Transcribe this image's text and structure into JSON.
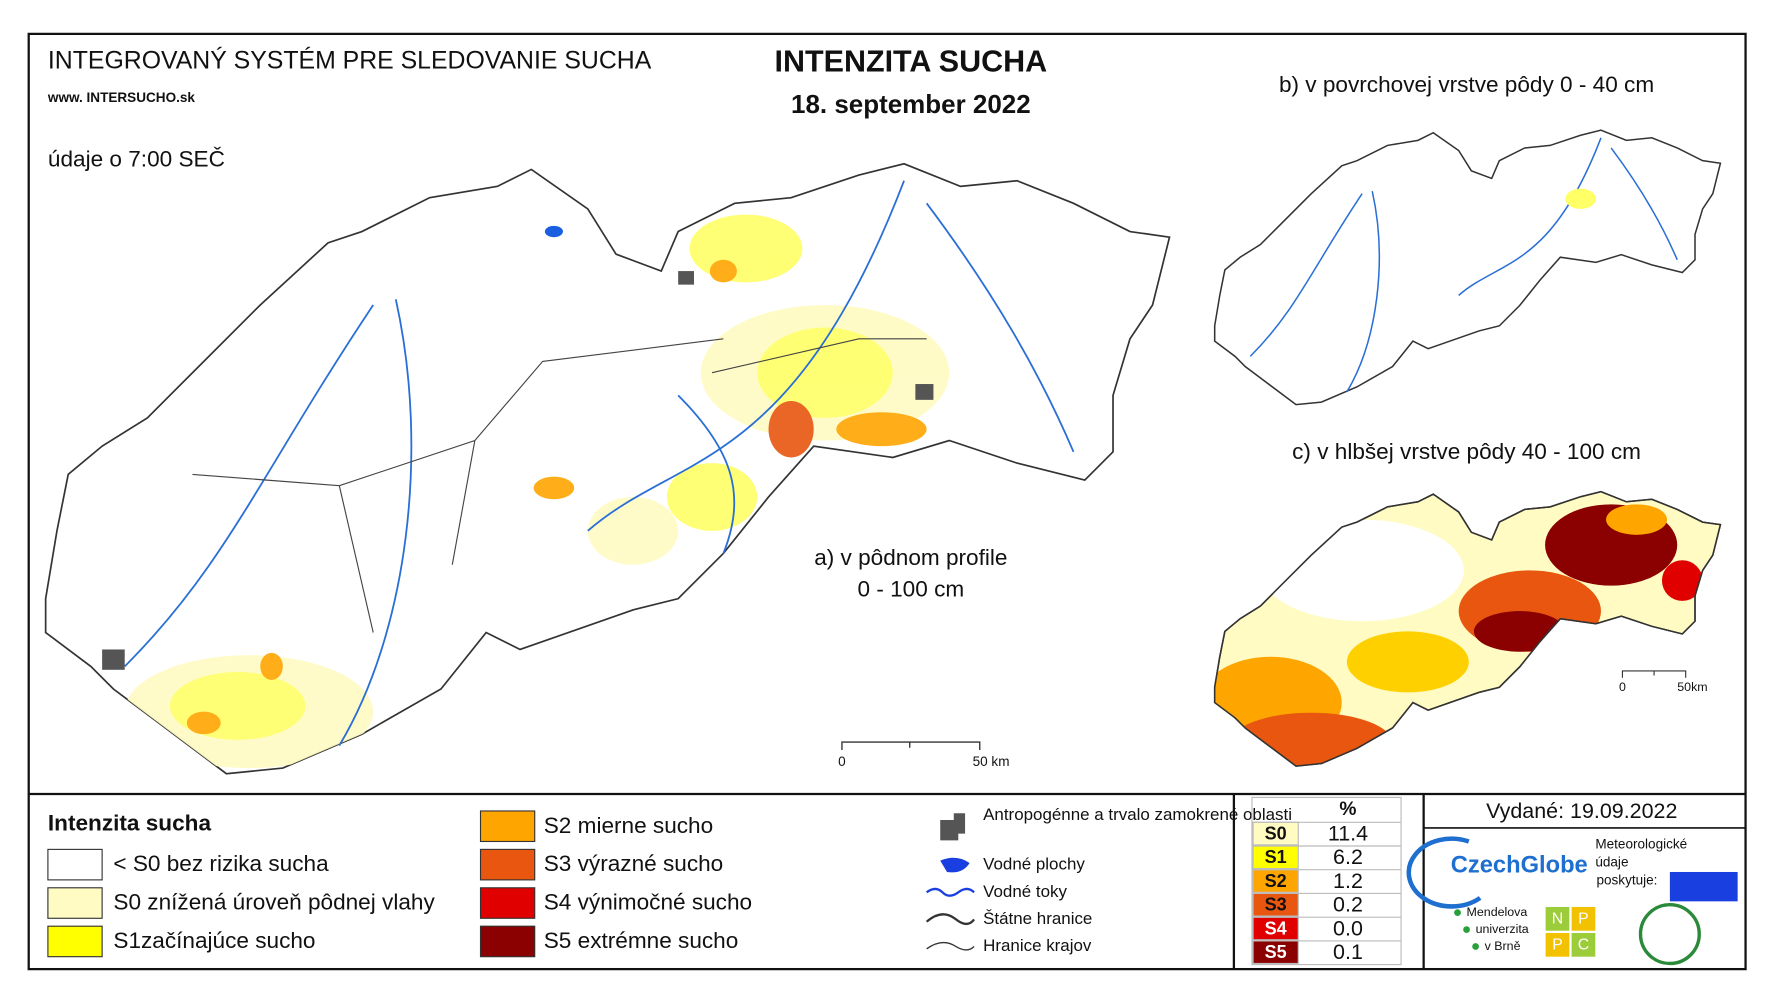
{
  "header": {
    "system_title": "INTEGROVANÝ SYSTÉM PRE SLEDOVANIE SUCHA",
    "website": "www. INTERSUCHO.sk",
    "observation_time": "údaje o 7:00 SEČ",
    "title": "INTENZITA SUCHA",
    "date": "18. september 2022"
  },
  "maps": {
    "a": {
      "label": [
        "a) v pôdnom profile",
        "0 - 100 cm"
      ],
      "scale": [
        "0",
        "50 km"
      ]
    },
    "b": {
      "label": "b) v povrchovej vrstve pôdy 0 - 40 cm"
    },
    "c": {
      "label": "c) v hlbšej vrstve pôdy 40 - 100 cm",
      "scale": [
        "0",
        "50km"
      ]
    }
  },
  "legend": {
    "title": "Intenzita sucha",
    "items": [
      {
        "label": "< S0 bez rizika sucha",
        "color": "#ffffff"
      },
      {
        "label": "S0 znížená úroveň pôdnej vlahy",
        "color": "#fffbc2"
      },
      {
        "label": "S1začínajúce sucho",
        "color": "#ffff00"
      },
      {
        "label": "S2 mierne sucho",
        "color": "#ffa500"
      },
      {
        "label": "S3 výrazné sucho",
        "color": "#e8560f"
      },
      {
        "label": "S4 výnimočné sucho",
        "color": "#e00000"
      },
      {
        "label": "S5 extrémne sucho",
        "color": "#8b0000"
      }
    ]
  },
  "symbols": [
    "Antropogénne a trvalo zamokrené oblasti",
    "Vodné plochy",
    "Vodné toky",
    "Štátne hranice",
    "Hranice krajov"
  ],
  "table": {
    "header": "%",
    "rows": [
      {
        "class": "S0",
        "value": "11.4",
        "color": "#fffbc2"
      },
      {
        "class": "S1",
        "value": "6.2",
        "color": "#ffff00"
      },
      {
        "class": "S2",
        "value": "1.2",
        "color": "#ffa500"
      },
      {
        "class": "S3",
        "value": "0.2",
        "color": "#e8560f"
      },
      {
        "class": "S4",
        "value": "0.0",
        "color": "#e00000"
      },
      {
        "class": "S5",
        "value": "0.1",
        "color": "#8b0000"
      }
    ]
  },
  "footer": {
    "issued": "Vydané: 19.09.2022",
    "czechglobe": "CzechGlobe",
    "provider": [
      "Meteorologické",
      "údaje",
      "poskytuje:"
    ],
    "mendel": [
      "Mendelova",
      "univerzita",
      "v Brně"
    ],
    "nppc": [
      "N",
      "P",
      "P",
      "C"
    ]
  }
}
